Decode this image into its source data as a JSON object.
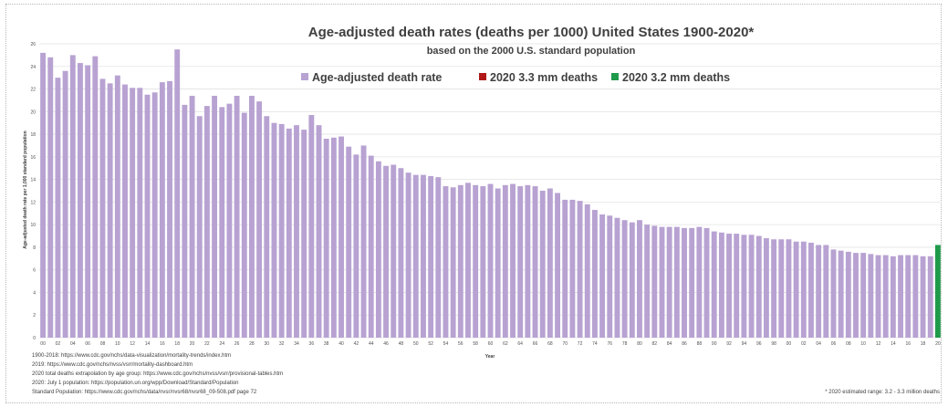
{
  "chart_data": {
    "type": "bar",
    "title": "Age-adjusted death rates (deaths per 1000) United States 1900-2020*",
    "subtitle": "based on the 2000 U.S. standard population",
    "xlabel": "Year",
    "ylabel": "Age-adjusted death rate per 1,000 standard population",
    "ylim": [
      0,
      26
    ],
    "yticks": [
      "0",
      "2",
      "4",
      "6",
      "8",
      "10",
      "12",
      "14",
      "16",
      "18",
      "20",
      "22",
      "24",
      "26"
    ],
    "grid": true,
    "legend_position": "top",
    "legend": [
      {
        "label": "Age-adjusted death rate",
        "color": "#b8a2d2"
      },
      {
        "label": "2020 3.3 mm deaths",
        "color": "#b01818"
      },
      {
        "label": "2020 3.2 mm deaths",
        "color": "#1f9a4a"
      }
    ],
    "x": [
      1900,
      1901,
      1902,
      1903,
      1904,
      1905,
      1906,
      1907,
      1908,
      1909,
      1910,
      1911,
      1912,
      1913,
      1914,
      1915,
      1916,
      1917,
      1918,
      1919,
      1920,
      1921,
      1922,
      1923,
      1924,
      1925,
      1926,
      1927,
      1928,
      1929,
      1930,
      1931,
      1932,
      1933,
      1934,
      1935,
      1936,
      1937,
      1938,
      1939,
      1940,
      1941,
      1942,
      1943,
      1944,
      1945,
      1946,
      1947,
      1948,
      1949,
      1950,
      1951,
      1952,
      1953,
      1954,
      1955,
      1956,
      1957,
      1958,
      1959,
      1960,
      1961,
      1962,
      1963,
      1964,
      1965,
      1966,
      1967,
      1968,
      1969,
      1970,
      1971,
      1972,
      1973,
      1974,
      1975,
      1976,
      1977,
      1978,
      1979,
      1980,
      1981,
      1982,
      1983,
      1984,
      1985,
      1986,
      1987,
      1988,
      1989,
      1990,
      1991,
      1992,
      1993,
      1994,
      1995,
      1996,
      1997,
      1998,
      1999,
      2000,
      2001,
      2002,
      2003,
      2004,
      2005,
      2006,
      2007,
      2008,
      2009,
      2010,
      2011,
      2012,
      2013,
      2014,
      2015,
      2016,
      2017,
      2018,
      2019,
      2020
    ],
    "xtick_labels": [
      "00",
      "02",
      "04",
      "06",
      "08",
      "10",
      "12",
      "14",
      "16",
      "18",
      "20",
      "22",
      "24",
      "26",
      "28",
      "30",
      "32",
      "34",
      "36",
      "38",
      "40",
      "42",
      "44",
      "46",
      "48",
      "50",
      "52",
      "54",
      "56",
      "58",
      "60",
      "62",
      "64",
      "66",
      "68",
      "70",
      "72",
      "74",
      "76",
      "78",
      "80",
      "82",
      "84",
      "86",
      "88",
      "90",
      "92",
      "94",
      "96",
      "98",
      "00",
      "02",
      "04",
      "06",
      "08",
      "10",
      "12",
      "14",
      "16",
      "18",
      "20"
    ],
    "values": [
      25.2,
      24.8,
      23.0,
      23.6,
      25.0,
      24.3,
      24.1,
      24.9,
      22.9,
      22.5,
      23.2,
      22.4,
      22.1,
      22.1,
      21.5,
      21.7,
      22.6,
      22.7,
      25.5,
      20.6,
      21.4,
      19.6,
      20.5,
      21.4,
      20.4,
      20.7,
      21.4,
      19.9,
      21.4,
      20.9,
      19.6,
      19.0,
      18.9,
      18.5,
      18.8,
      18.4,
      19.7,
      18.8,
      17.6,
      17.7,
      17.8,
      16.9,
      16.2,
      17.0,
      16.1,
      15.6,
      15.2,
      15.3,
      15.0,
      14.6,
      14.4,
      14.4,
      14.3,
      14.2,
      13.4,
      13.3,
      13.5,
      13.7,
      13.5,
      13.4,
      13.6,
      13.2,
      13.5,
      13.6,
      13.4,
      13.5,
      13.4,
      13.0,
      13.2,
      12.8,
      12.2,
      12.2,
      12.1,
      11.8,
      11.3,
      10.9,
      10.8,
      10.6,
      10.4,
      10.2,
      10.4,
      10.0,
      9.9,
      9.8,
      9.8,
      9.8,
      9.7,
      9.7,
      9.8,
      9.7,
      9.4,
      9.3,
      9.2,
      9.2,
      9.1,
      9.1,
      9.0,
      8.8,
      8.7,
      8.7,
      8.7,
      8.5,
      8.5,
      8.4,
      8.2,
      8.2,
      7.8,
      7.7,
      7.6,
      7.5,
      7.5,
      7.4,
      7.3,
      7.3,
      7.2,
      7.3,
      7.3,
      7.3,
      7.2,
      7.2,
      8.2
    ],
    "highlight": {
      "x": 2020,
      "value": 8.2,
      "color": "#1f9a4a"
    },
    "bar_color": "#b8a2d2"
  },
  "sources": [
    "1900-2018: https://www.cdc.gov/nchs/data-visualization/mortality-trends/index.htm",
    "2019: https://www.cdc.gov/nchs/nvss/vsrr/mortality-dashboard.htm",
    "2020 total deaths extrapolation by age group: https://www.cdc.gov/nchs/nvss/vsrr/provisional-tables.htm",
    "2020: July 1 population: https://population.un.org/wpp/Download/Standard/Population",
    "Standard Population: https://www.cdc.gov/nchs/data/nvsr/nvsr68/nvsr68_09-508.pdf   page 72"
  ],
  "footnote": "* 2020 estimated range: 3.2 - 3.3 million deaths"
}
